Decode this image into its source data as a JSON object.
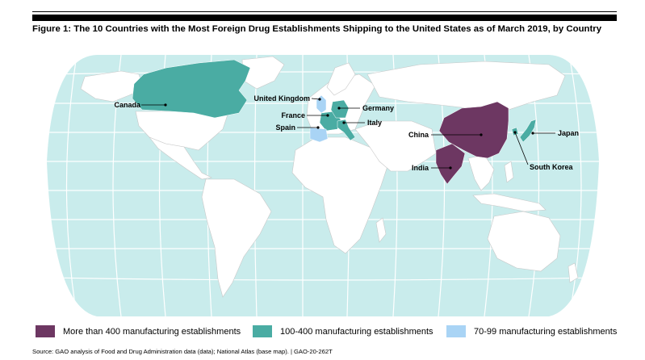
{
  "title": "Figure 1: The 10 Countries with the Most Foreign Drug Establishments Shipping to the United States as of March 2019, by Country",
  "colors": {
    "ocean": "#c9ecec",
    "land": "#ffffff",
    "high": "#6d3762",
    "mid": "#4aaca3",
    "low": "#a9d4f5"
  },
  "countries": [
    {
      "name": "Canada",
      "category": "mid"
    },
    {
      "name": "United Kingdom",
      "category": "low"
    },
    {
      "name": "France",
      "category": "mid"
    },
    {
      "name": "Spain",
      "category": "low"
    },
    {
      "name": "Germany",
      "category": "mid"
    },
    {
      "name": "Italy",
      "category": "mid"
    },
    {
      "name": "China",
      "category": "high"
    },
    {
      "name": "India",
      "category": "high"
    },
    {
      "name": "Japan",
      "category": "mid"
    },
    {
      "name": "South Korea",
      "category": "mid"
    }
  ],
  "legend": [
    {
      "label": "More than 400 manufacturing establishments",
      "color": "#6d3762"
    },
    {
      "label": "100-400 manufacturing establishments",
      "color": "#4aaca3"
    },
    {
      "label": "70-99 manufacturing establishments",
      "color": "#a9d4f5"
    }
  ],
  "source": "Source: GAO analysis of Food and Drug Administration data (data); National Atlas (base map).  |  GAO-20-262T"
}
